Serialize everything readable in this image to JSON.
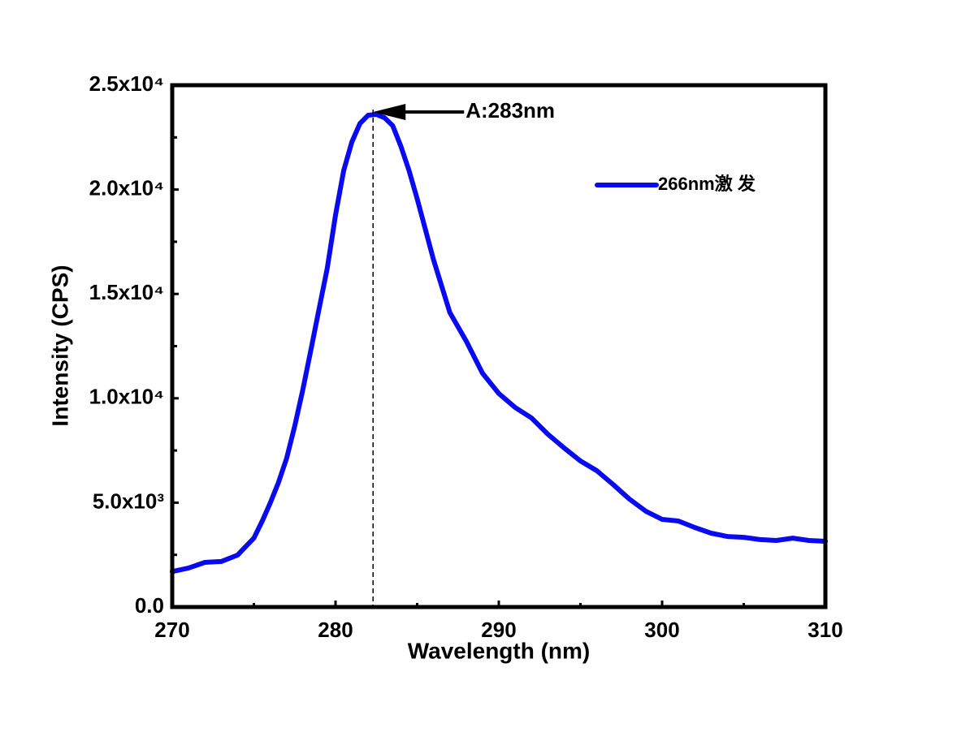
{
  "chart_data": {
    "type": "line",
    "x_label": "Wavelength (nm)",
    "y_label": "Intensity (CPS)",
    "xlim": [
      270,
      310
    ],
    "ylim": [
      0,
      25000
    ],
    "xticks": [
      270,
      280,
      290,
      300,
      310
    ],
    "yticks": [
      {
        "value": 0,
        "label": "0.0"
      },
      {
        "value": 5000,
        "label": "5.0x10³"
      },
      {
        "value": 10000,
        "label": "1.0x10⁴"
      },
      {
        "value": 15000,
        "label": "1.5x10⁴"
      },
      {
        "value": 20000,
        "label": "2.0x10⁴"
      },
      {
        "value": 25000,
        "label": "2.5x10⁴"
      }
    ],
    "xminorticks": [
      275,
      285,
      295,
      305
    ],
    "yminorticks": [
      2500,
      7500,
      12500,
      17500,
      22500
    ],
    "legend": "upper right",
    "vline": 282.3,
    "annotation": "A:283nm",
    "series": [
      {
        "name": "266nm激 发",
        "color": "#0a0af0",
        "x": [
          270,
          271,
          272,
          273,
          274,
          275,
          275.5,
          276,
          276.5,
          277,
          277.5,
          278,
          278.5,
          279,
          279.5,
          280,
          280.5,
          281,
          281.5,
          282,
          282.5,
          283,
          283.5,
          284,
          284.5,
          285,
          286,
          287,
          288,
          289,
          290,
          291,
          292,
          293,
          294,
          295,
          296,
          297,
          298,
          299,
          300,
          301,
          302,
          303,
          304,
          305,
          306,
          307,
          308,
          309,
          310
        ],
        "values": [
          1700,
          1870,
          2140,
          2180,
          2490,
          3300,
          4100,
          4980,
          5950,
          7110,
          8670,
          10420,
          12360,
          14310,
          16250,
          18780,
          20920,
          22280,
          23170,
          23560,
          23600,
          23440,
          23060,
          22080,
          20920,
          19560,
          16640,
          14110,
          12750,
          11200,
          10230,
          9560,
          9060,
          8280,
          7620,
          7000,
          6530,
          5870,
          5170,
          4590,
          4200,
          4120,
          3810,
          3540,
          3380,
          3340,
          3230,
          3190,
          3300,
          3190,
          3150
        ]
      }
    ]
  }
}
